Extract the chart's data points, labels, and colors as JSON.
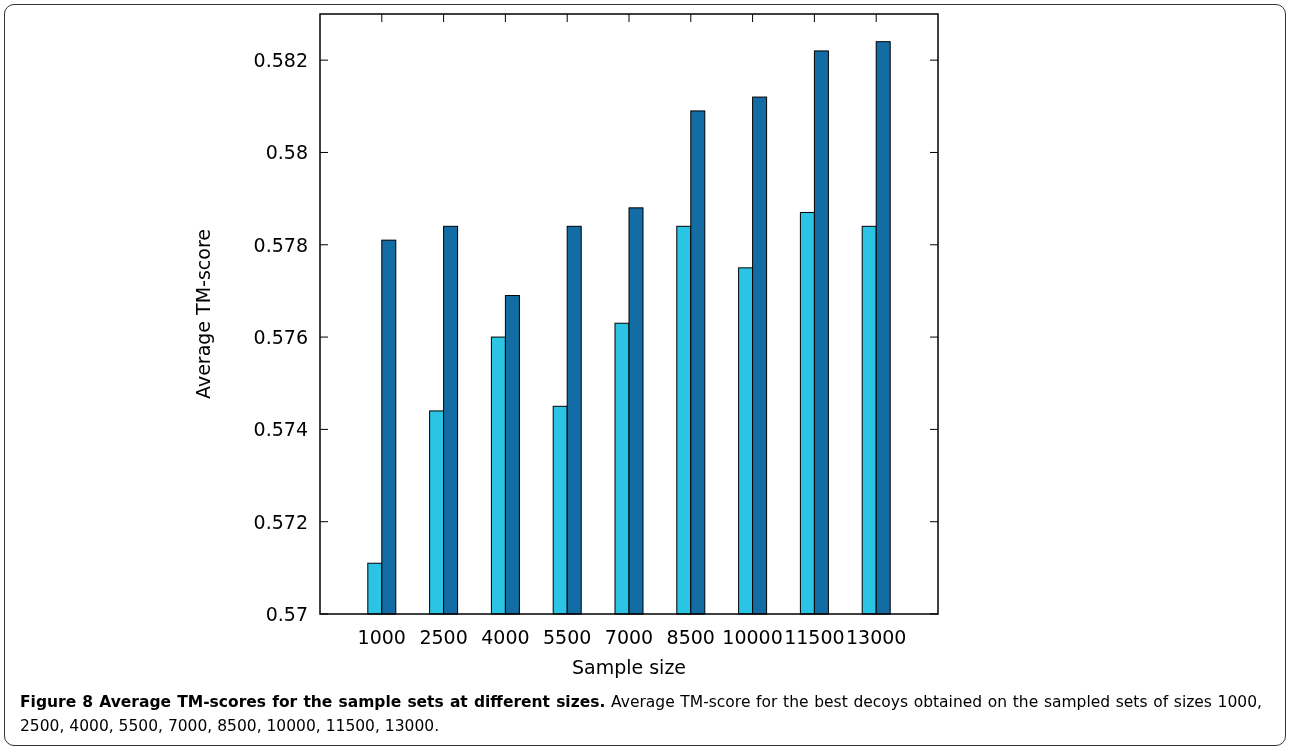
{
  "chart_data": {
    "type": "bar",
    "title": "Figure 8 Average TM-scores for the sample sets at different sizes.",
    "xlabel": "Sample size",
    "ylabel": "Average TM-score",
    "annotations": [
      "Average TM-score for the best decoys obtained on the sampled sets of sizes 1000, 2500, 4000, 5500, 7000, 8500, 10000, 11500, 13000."
    ],
    "categories": [
      "1000",
      "2500",
      "4000",
      "5500",
      "7000",
      "8500",
      "10000",
      "11500",
      "13000"
    ],
    "series": [
      {
        "color": "#2bc4e4",
        "values": [
          0.5711,
          0.5744,
          0.576,
          0.5745,
          0.5763,
          0.5784,
          0.5775,
          0.5787,
          0.5784
        ]
      },
      {
        "color": "#136ca4",
        "values": [
          0.5781,
          0.5784,
          0.5769,
          0.5784,
          0.5788,
          0.5809,
          0.5812,
          0.5822,
          0.5824
        ]
      }
    ],
    "ylim": [
      0.57,
      0.583
    ],
    "yticks": [
      0.57,
      0.572,
      0.574,
      0.576,
      0.578,
      0.58,
      0.582
    ],
    "grid": false
  }
}
